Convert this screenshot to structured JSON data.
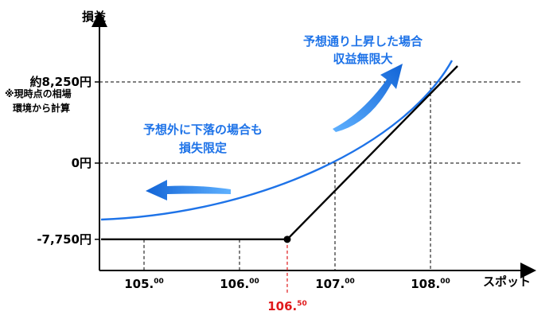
{
  "chart_data": {
    "type": "line",
    "ylabel": "損益",
    "xlabel": "スポット",
    "colors": {
      "payoff": "#000000",
      "curve": "#1e73e8",
      "strike_marker": "#e0191b",
      "annotation": "#1e73e8"
    },
    "y_axis_labels": [
      {
        "value": 8250,
        "text": "約8,250円"
      },
      {
        "value": 0,
        "text": "0円"
      },
      {
        "value": -7750,
        "text": "-7,750円"
      }
    ],
    "y_note": [
      "※現時点の相場",
      "環境から計算"
    ],
    "x_ticks": [
      {
        "value": 105.0,
        "main": "105.",
        "sup": "00"
      },
      {
        "value": 106.0,
        "main": "106.",
        "sup": "00"
      },
      {
        "value": 107.0,
        "main": "107.",
        "sup": "00"
      },
      {
        "value": 108.0,
        "main": "108.",
        "sup": "00"
      }
    ],
    "strike": {
      "value": 106.5,
      "main": "106.",
      "sup": "50"
    },
    "annotations": {
      "upside": [
        "予想通り上昇した場合",
        "収益無限大"
      ],
      "downside": [
        "予想外に下落の場合も",
        "損失限定"
      ]
    }
  }
}
